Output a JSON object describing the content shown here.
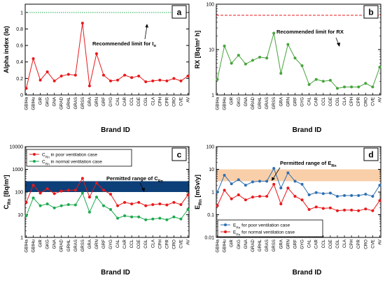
{
  "brand_ids": [
    "GBIHa",
    "GBIHu",
    "GIR",
    "GKG",
    "GNA",
    "GRAD",
    "GRHL",
    "GRAS",
    "GRSS",
    "GRA",
    "GRN",
    "GRF",
    "GYG",
    "CAL",
    "CAR",
    "CCL",
    "CGE",
    "CGL",
    "CLA",
    "CPH",
    "CPR",
    "CRO",
    "CVE",
    "AV"
  ],
  "chart_data": [
    {
      "panel": "a",
      "type": "line",
      "xlabel": "Brand ID",
      "ylabel": "Alpha index (Iα)",
      "ylim": [
        0,
        1.1
      ],
      "yticks": [
        0,
        0.2,
        0.4,
        0.6,
        0.8,
        1
      ],
      "ytick_labels": [
        "0",
        "0.2",
        "0.4",
        "0.6",
        "0.8",
        "1"
      ],
      "scale": "linear",
      "series": [
        {
          "values": [
            0.08,
            0.44,
            0.18,
            0.28,
            0.17,
            0.23,
            0.25,
            0.24,
            0.87,
            0.11,
            0.5,
            0.24,
            0.17,
            0.18,
            0.24,
            0.21,
            0.23,
            0.16,
            0.17,
            0.18,
            0.17,
            0.2,
            0.17,
            0.23
          ],
          "color": "#e8191c"
        }
      ],
      "reference_lines": [
        {
          "value": 1.0,
          "color": "#1daa4f",
          "style": "dotted",
          "label": "Recommended limit for Iα"
        }
      ]
    },
    {
      "panel": "b",
      "type": "line",
      "xlabel": "Brand ID",
      "ylabel": "RX [Bq/m² h]",
      "ylim": [
        1,
        100
      ],
      "yticks": [
        1,
        10,
        100
      ],
      "ytick_labels": [
        "1",
        "10",
        "100"
      ],
      "scale": "log",
      "series": [
        {
          "values": [
            2.2,
            12,
            5,
            7.5,
            4.8,
            5.8,
            6.8,
            6.5,
            23,
            3,
            13,
            6.5,
            4.4,
            1.7,
            2.2,
            2.0,
            2.1,
            1.4,
            1.5,
            1.5,
            1.5,
            1.8,
            1.5,
            4.1
          ],
          "color": "#47a33c"
        }
      ],
      "reference_lines": [
        {
          "value": 57,
          "color": "#e8191c",
          "style": "dashed",
          "label": "Recommended limit for RX"
        }
      ]
    },
    {
      "panel": "c",
      "type": "line",
      "xlabel": "Brand ID",
      "ylabel": "C_Rn [Bq/m³]",
      "ylim": [
        1,
        10000
      ],
      "yticks": [
        1,
        10,
        100,
        1000,
        10000
      ],
      "ytick_labels": [
        "1",
        "10",
        "100",
        "1000",
        "10000"
      ],
      "scale": "log",
      "band": {
        "from": 100,
        "to": 300,
        "color": "#0d3f78",
        "label": "Permitted range of C_Rn"
      },
      "series": [
        {
          "name": "C_Rn in poor ventilation case",
          "values": [
            35,
            200,
            90,
            140,
            85,
            110,
            120,
            120,
            400,
            60,
            250,
            120,
            80,
            25,
            35,
            30,
            35,
            25,
            28,
            30,
            27,
            35,
            28,
            75
          ],
          "color": "#e8191c"
        },
        {
          "name": "C_Rn in normal ventilation case",
          "values": [
            9,
            55,
            25,
            30,
            20,
            25,
            28,
            27,
            90,
            13,
            60,
            25,
            17,
            7,
            9,
            8,
            8,
            6,
            6.5,
            7,
            6,
            8,
            6.5,
            17
          ],
          "color": "#1daa4f"
        }
      ]
    },
    {
      "panel": "d",
      "type": "line",
      "xlabel": "Brand ID",
      "ylabel": "E_Rn [mSv/y]",
      "ylim": [
        0.01,
        100
      ],
      "yticks": [
        0.01,
        0.1,
        1,
        10,
        100
      ],
      "ytick_labels": [
        "0.01",
        "0.1",
        "1",
        "10",
        "100"
      ],
      "scale": "log",
      "band": {
        "from": 3,
        "to": 10,
        "color": "#f9cfa9",
        "label": "Permitted range of E_Rn"
      },
      "series": [
        {
          "name": "E_Rn for poor ventilation case",
          "values": [
            1.0,
            5.5,
            2.3,
            3.5,
            2.0,
            2.8,
            3.0,
            3.0,
            11,
            1.5,
            7,
            3.0,
            2.2,
            0.75,
            0.95,
            0.85,
            0.9,
            0.65,
            0.7,
            0.7,
            0.7,
            0.8,
            0.65,
            2.0
          ],
          "color": "#2f6fb2"
        },
        {
          "name": "E_Rn for normal ventilation case",
          "values": [
            0.25,
            1.2,
            0.5,
            0.75,
            0.45,
            0.6,
            0.65,
            0.65,
            2.2,
            0.3,
            1.5,
            0.65,
            0.45,
            0.17,
            0.22,
            0.19,
            0.2,
            0.15,
            0.16,
            0.16,
            0.15,
            0.18,
            0.15,
            0.42
          ],
          "color": "#e8191c"
        }
      ]
    }
  ]
}
